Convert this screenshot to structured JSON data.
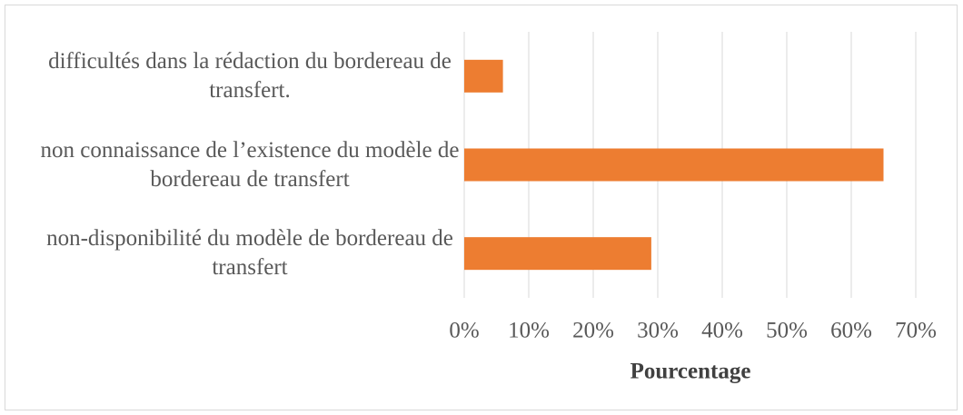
{
  "chart_data": {
    "type": "barh",
    "categories": [
      "difficultés dans la rédaction du bordereau de transfert.",
      "non connaissance de l’existence du modèle de bordereau de transfert",
      "non-disponibilité du modèle de bordereau de transfert"
    ],
    "values": [
      6,
      65,
      29
    ],
    "color": "#ed7d31",
    "xlabel": "Pourcentage",
    "xlim": [
      0,
      70
    ],
    "xticks": [
      {
        "value": 0,
        "label": "0%"
      },
      {
        "value": 10,
        "label": "10%"
      },
      {
        "value": 20,
        "label": "20%"
      },
      {
        "value": 30,
        "label": "30%"
      },
      {
        "value": 40,
        "label": "40%"
      },
      {
        "value": 50,
        "label": "50%"
      },
      {
        "value": 60,
        "label": "60%"
      },
      {
        "value": 70,
        "label": "70%"
      }
    ],
    "grid": true
  }
}
